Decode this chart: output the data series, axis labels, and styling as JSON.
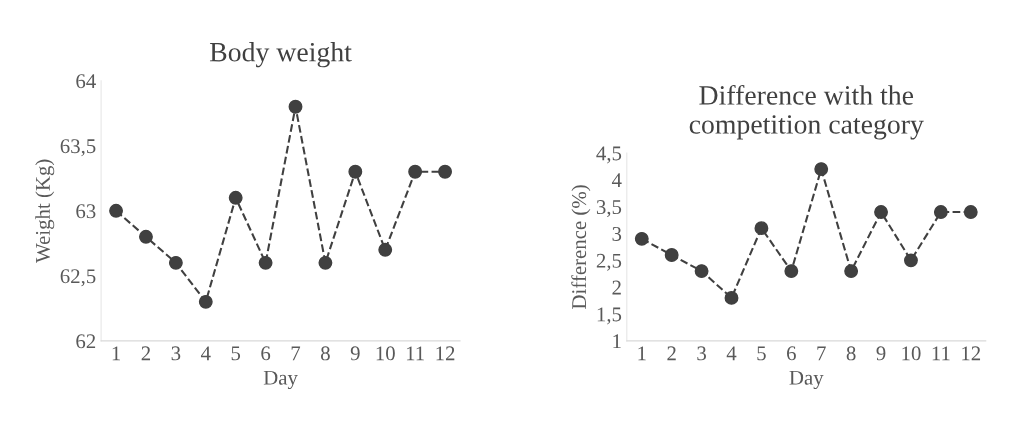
{
  "chart_data": [
    {
      "type": "line",
      "title": "Body weight",
      "xlabel": "Day",
      "ylabel": "Weight (Kg)",
      "categories": [
        "1",
        "2",
        "3",
        "4",
        "5",
        "6",
        "7",
        "8",
        "9",
        "10",
        "11",
        "12"
      ],
      "series": [
        {
          "color": "#404040",
          "values": [
            63,
            62.8,
            62.6,
            62.3,
            63.1,
            62.6,
            63.8,
            62.6,
            63.3,
            62.7,
            63.3,
            63.3
          ]
        }
      ],
      "ylim": [
        62,
        64
      ],
      "yticks": [
        {
          "value": 62,
          "label": "62"
        },
        {
          "value": 62.5,
          "label": "62,5"
        },
        {
          "value": 63,
          "label": "63"
        },
        {
          "value": 63.5,
          "label": "63,5"
        },
        {
          "value": 64,
          "label": "64"
        }
      ],
      "marker": "circle",
      "line_style": "dashed",
      "grid": false
    },
    {
      "type": "line",
      "title": "Difference with the competition category",
      "xlabel": "Day",
      "ylabel": "Difference (%)",
      "categories": [
        "1",
        "2",
        "3",
        "4",
        "5",
        "6",
        "7",
        "8",
        "9",
        "10",
        "11",
        "12"
      ],
      "series": [
        {
          "color": "#404040",
          "values": [
            2.9,
            2.6,
            2.3,
            1.8,
            3.1,
            2.3,
            4.2,
            2.3,
            3.4,
            2.5,
            3.4,
            3.4
          ]
        }
      ],
      "ylim": [
        1,
        4.5
      ],
      "yticks": [
        {
          "value": 1,
          "label": "1"
        },
        {
          "value": 1.5,
          "label": "1,5"
        },
        {
          "value": 2,
          "label": "2"
        },
        {
          "value": 2.5,
          "label": "2,5"
        },
        {
          "value": 3,
          "label": "3"
        },
        {
          "value": 3.5,
          "label": "3,5"
        },
        {
          "value": 4,
          "label": "4"
        },
        {
          "value": 4.5,
          "label": "4,5"
        }
      ],
      "marker": "circle",
      "line_style": "dashed",
      "grid": false
    }
  ]
}
